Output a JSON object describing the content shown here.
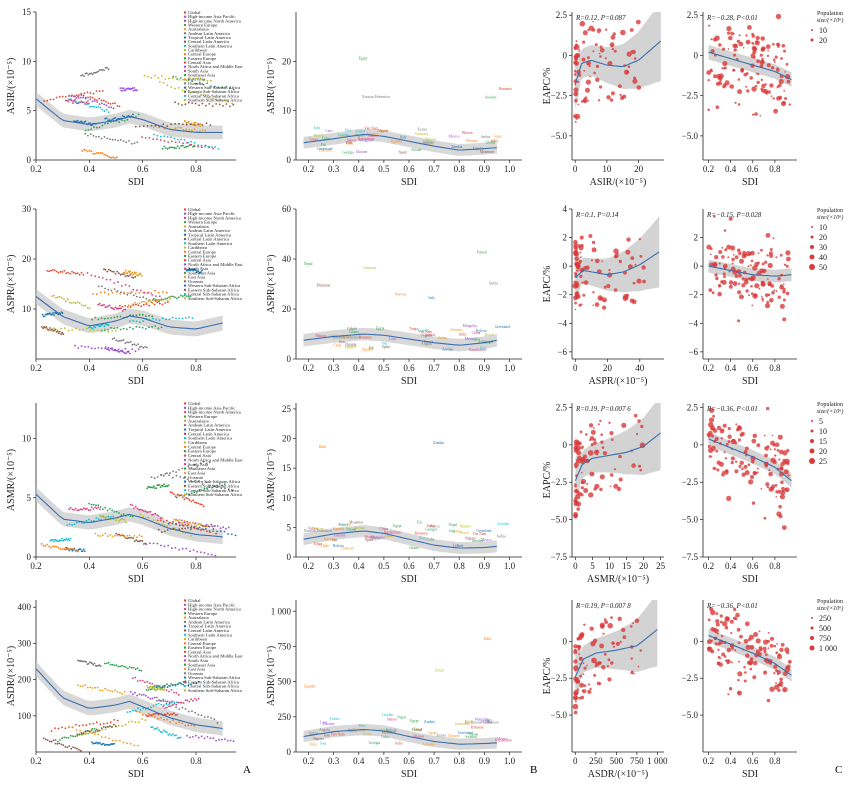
{
  "figure": {
    "panel_letters": [
      "A",
      "B",
      "C"
    ]
  },
  "colors": {
    "band": "#c8c8c8",
    "curve": "#3a6fb0",
    "point": "#d93a3a",
    "axis": "#222222",
    "palette": [
      "#e6452e",
      "#9a4fd1",
      "#d6417f",
      "#2ca05a",
      "#e8a020",
      "#7a7a7a",
      "#1f77b4",
      "#8c564b",
      "#17becf",
      "#bcbd22",
      "#ff7f0e",
      "#2f9e44"
    ]
  },
  "regions": [
    "Global",
    "High-income Asia Pacific",
    "High-income North America",
    "Western Europe",
    "Australasia",
    "Andean Latin America",
    "Tropical Latin America",
    "Central Latin America",
    "Southern Latin America",
    "Caribbean",
    "Central Europe",
    "Eastern Europe",
    "Central Asia",
    "North Africa and Middle East",
    "South Asia",
    "Southeast Asia",
    "East Asia",
    "Oceania",
    "Western Sub-Saharan Africa",
    "Eastern Sub-Saharan Africa",
    "Central Sub-Saharan Africa",
    "Southern Sub-Saharan Africa"
  ],
  "country_labels": [
    "Viet Nam",
    "Mongolia",
    "China",
    "Nepal",
    "Thailand",
    "Kenya",
    "Zambia",
    "Myanmar",
    "Peru",
    "Brazil",
    "Chile",
    "Egypt",
    "India",
    "Mexico",
    "Samoa",
    "Cuba",
    "Japan",
    "Russian Federation",
    "Greenland",
    "Nigeria",
    "Lesotho",
    "Malawi",
    "Uganda",
    "Ghana",
    "Tonga",
    "Laos",
    "Bhutan",
    "Fiji",
    "Sudan",
    "Angola",
    "Bolivia",
    "Iran",
    "Iraq",
    "Jordan",
    "Haiti",
    "Poland",
    "Romania",
    "Ukraine",
    "Kazakhstan",
    "Georgia",
    "Armenia",
    "Serbia",
    "Italy",
    "Spain",
    "France",
    "Germany",
    "Norway",
    "Sweden"
  ],
  "legend": {
    "title": "Population",
    "unit": "size/(×10⁶)"
  },
  "rows": [
    {
      "metric": "ASIR",
      "A": {
        "ylabel": "ASIR/(×10⁻⁵)",
        "xlabel": "SDI"
      },
      "B": {
        "ylabel": "ASIR/(×10⁻⁵)",
        "xlabel": "SDI"
      },
      "C1": {
        "stat": "R=0.12, P=0.087",
        "ylabel": "EAPC/%",
        "xlabel": "ASIR/(×10⁻⁵)"
      },
      "C2": {
        "stat": "R=−0.28, P<0.01",
        "xlabel": "SDI"
      },
      "legend_sizes": [
        "10",
        "20"
      ]
    },
    {
      "metric": "ASPR",
      "A": {
        "ylabel": "ASPR/(×10⁻⁵)",
        "xlabel": "SDI"
      },
      "B": {
        "ylabel": "ASPR/(×10⁻⁵)",
        "xlabel": "SDI"
      },
      "C1": {
        "stat": "R=0.1, P=0.14",
        "ylabel": "EAPC/%",
        "xlabel": "ASPR/(×10⁻⁵)"
      },
      "C2": {
        "stat": "R=−0.15, P=0.028",
        "xlabel": "SDI"
      },
      "legend_sizes": [
        "10",
        "20",
        "30",
        "40",
        "50"
      ]
    },
    {
      "metric": "ASMR",
      "A": {
        "ylabel": "ASMR/(×10⁻⁵)",
        "xlabel": "SDI"
      },
      "B": {
        "ylabel": "ASMR/(×10⁻⁵)",
        "xlabel": "SDI"
      },
      "C1": {
        "stat": "R=0.19, P=0.007 6",
        "ylabel": "EAPC/%",
        "xlabel": "ASMR/(×10⁻⁵)"
      },
      "C2": {
        "stat": "R=−0.36, P<0.01",
        "xlabel": "SDI"
      },
      "legend_sizes": [
        "5",
        "10",
        "15",
        "20",
        "25"
      ]
    },
    {
      "metric": "ASDR",
      "A": {
        "ylabel": "ASDR/(×10⁻⁵)",
        "xlabel": "SDI"
      },
      "B": {
        "ylabel": "ASDR/(×10⁻⁵)",
        "xlabel": "SDI"
      },
      "C1": {
        "stat": "R=0.19, P=0.007 8",
        "ylabel": "EAPC/%",
        "xlabel": "ASDR/(×10⁻⁵)"
      },
      "C2": {
        "stat": "R=−0.36, P<0.01",
        "xlabel": "SDI"
      },
      "legend_sizes": [
        "250",
        "500",
        "750",
        "1 000"
      ]
    }
  ],
  "chart_data": [
    {
      "type": "scatter",
      "panel": "A",
      "metric": "ASIR",
      "title": "",
      "xlabel": "SDI",
      "ylabel": "ASIR/(×10⁻⁵)",
      "xlim": [
        0.2,
        0.95
      ],
      "ylim": [
        0,
        15
      ],
      "x_ticks": [
        "0.2",
        "0.4",
        "0.6",
        "0.8"
      ],
      "y_ticks": [
        "0",
        "5",
        "10",
        "15"
      ],
      "smooth_x": [
        0.2,
        0.3,
        0.4,
        0.5,
        0.55,
        0.6,
        0.7,
        0.8,
        0.9
      ],
      "smooth_y": [
        6.2,
        4,
        3.6,
        4,
        4.4,
        4.1,
        3.1,
        2.8,
        2.8
      ],
      "band_halfwidth": 0.7
    },
    {
      "type": "scatter",
      "panel": "B",
      "metric": "ASIR",
      "title": "",
      "xlabel": "SDI",
      "ylabel": "ASIR/(×10⁻⁵)",
      "xlim": [
        0.15,
        1.05
      ],
      "ylim": [
        0,
        30
      ],
      "x_ticks": [
        "0.2",
        "0.3",
        "0.4",
        "0.5",
        "0.6",
        "0.7",
        "0.8",
        "0.9",
        "1.0"
      ],
      "y_ticks": [
        "0",
        "10",
        "20"
      ],
      "smooth_x": [
        0.18,
        0.3,
        0.42,
        0.5,
        0.6,
        0.7,
        0.8,
        0.9,
        0.95
      ],
      "smooth_y": [
        3.5,
        4.3,
        5.2,
        4.8,
        3.8,
        2.8,
        2,
        2.3,
        2.5
      ],
      "band_halfwidth": 1.2
    },
    {
      "type": "scatter",
      "panel": "C1",
      "metric": "ASIR",
      "title": "",
      "xlabel": "ASIR/(×10⁻⁵)",
      "ylabel": "EAPC/%",
      "xlim": [
        -1,
        28
      ],
      "ylim": [
        -6.5,
        2.7
      ],
      "x_ticks": [
        "0",
        "10",
        "20"
      ],
      "y_ticks": [
        "2.5",
        "0",
        "−2.5",
        "−5.0"
      ],
      "smooth_x": [
        0,
        2,
        5,
        10,
        15,
        20,
        27
      ],
      "smooth_y": [
        -1.8,
        -0.5,
        -0.3,
        -0.6,
        -0.7,
        -0.3,
        0.9
      ]
    },
    {
      "type": "scatter",
      "panel": "C2",
      "metric": "ASIR",
      "title": "",
      "xlabel": "SDI",
      "ylabel": "",
      "xlim": [
        0.15,
        1.0
      ],
      "ylim": [
        -6.5,
        2.7
      ],
      "x_ticks": [
        "0.2",
        "0.4",
        "0.6",
        "0.8"
      ],
      "y_ticks": [
        "2.5",
        "0",
        "−2.5",
        "−5.0"
      ],
      "smooth_x": [
        0.2,
        0.4,
        0.6,
        0.8,
        0.95
      ],
      "smooth_y": [
        0.2,
        -0.2,
        -0.6,
        -1,
        -1.5
      ]
    },
    {
      "type": "scatter",
      "panel": "A",
      "metric": "ASPR",
      "title": "",
      "xlabel": "SDI",
      "ylabel": "ASPR/(×10⁻⁵)",
      "xlim": [
        0.2,
        0.95
      ],
      "ylim": [
        0,
        30
      ],
      "x_ticks": [
        "0.2",
        "0.4",
        "0.6",
        "0.8"
      ],
      "y_ticks": [
        "10",
        "20",
        "30"
      ],
      "smooth_x": [
        0.2,
        0.3,
        0.4,
        0.5,
        0.55,
        0.6,
        0.7,
        0.8,
        0.9
      ],
      "smooth_y": [
        12.5,
        8.5,
        6.6,
        7.6,
        8.6,
        8.2,
        6.4,
        6,
        7.2
      ],
      "band_halfwidth": 1.5
    },
    {
      "type": "scatter",
      "panel": "B",
      "metric": "ASPR",
      "title": "",
      "xlabel": "SDI",
      "ylabel": "ASPR/(×10⁻⁵)",
      "xlim": [
        0.15,
        1.05
      ],
      "ylim": [
        0,
        60
      ],
      "x_ticks": [
        "0.2",
        "0.3",
        "0.4",
        "0.5",
        "0.6",
        "0.7",
        "0.8",
        "0.9",
        "1.0"
      ],
      "y_ticks": [
        "0",
        "20",
        "40",
        "60"
      ],
      "smooth_x": [
        0.18,
        0.3,
        0.42,
        0.5,
        0.6,
        0.7,
        0.8,
        0.9,
        0.95
      ],
      "smooth_y": [
        7.5,
        9,
        10,
        9.5,
        8,
        6.5,
        5.5,
        6.5,
        7.5
      ],
      "band_halfwidth": 2.5
    },
    {
      "type": "scatter",
      "panel": "C1",
      "metric": "ASPR",
      "title": "",
      "xlabel": "ASPR/(×10⁻⁵)",
      "ylabel": "EAPC/%",
      "xlim": [
        -2,
        55
      ],
      "ylim": [
        -6.5,
        4
      ],
      "x_ticks": [
        "0",
        "20",
        "40"
      ],
      "y_ticks": [
        "4",
        "2",
        "0",
        "−2",
        "−4",
        "−6"
      ],
      "smooth_x": [
        0,
        5,
        10,
        20,
        30,
        40,
        52
      ],
      "smooth_y": [
        -0.8,
        -0.3,
        -0.4,
        -0.6,
        -0.4,
        0.1,
        1.0
      ]
    },
    {
      "type": "scatter",
      "panel": "C2",
      "metric": "ASPR",
      "title": "",
      "xlabel": "SDI",
      "ylabel": "",
      "xlim": [
        0.15,
        1.0
      ],
      "ylim": [
        -6.5,
        4
      ],
      "x_ticks": [
        "0.2",
        "0.4",
        "0.6",
        "0.8"
      ],
      "y_ticks": [
        "2",
        "0",
        "−2",
        "−4",
        "−6"
      ],
      "smooth_x": [
        0.2,
        0.4,
        0.6,
        0.8,
        0.95
      ],
      "smooth_y": [
        0,
        -0.3,
        -0.6,
        -0.7,
        -0.6
      ]
    },
    {
      "type": "scatter",
      "panel": "A",
      "metric": "ASMR",
      "title": "",
      "xlabel": "SDI",
      "ylabel": "ASMR/(×10⁻⁵)",
      "xlim": [
        0.2,
        0.95
      ],
      "ylim": [
        0,
        13
      ],
      "x_ticks": [
        "0.2",
        "0.4",
        "0.6",
        "0.8"
      ],
      "y_ticks": [
        "0",
        "5",
        "10"
      ],
      "smooth_x": [
        0.2,
        0.3,
        0.4,
        0.5,
        0.55,
        0.6,
        0.7,
        0.8,
        0.9
      ],
      "smooth_y": [
        5.3,
        3.2,
        2.9,
        3.3,
        3.6,
        3.3,
        2.4,
        1.9,
        1.7
      ],
      "band_halfwidth": 0.6
    },
    {
      "type": "scatter",
      "panel": "B",
      "metric": "ASMR",
      "title": "",
      "xlabel": "SDI",
      "ylabel": "ASMR/(×10⁻⁵)",
      "xlim": [
        0.15,
        1.05
      ],
      "ylim": [
        0,
        26
      ],
      "x_ticks": [
        "0.2",
        "0.3",
        "0.4",
        "0.5",
        "0.6",
        "0.7",
        "0.8",
        "0.9",
        "1.0"
      ],
      "y_ticks": [
        "0",
        "5",
        "10",
        "15",
        "20",
        "25"
      ],
      "smooth_x": [
        0.18,
        0.3,
        0.42,
        0.5,
        0.6,
        0.7,
        0.8,
        0.9,
        0.95
      ],
      "smooth_y": [
        3,
        3.9,
        4.4,
        4,
        3,
        2,
        1.5,
        1.6,
        1.8
      ],
      "band_halfwidth": 1
    },
    {
      "type": "scatter",
      "panel": "C1",
      "metric": "ASMR",
      "title": "",
      "xlabel": "ASMR/(×10⁻⁵)",
      "ylabel": "EAPC/%",
      "xlim": [
        -1,
        26
      ],
      "ylim": [
        -7.5,
        2.8
      ],
      "x_ticks": [
        "0",
        "5",
        "10",
        "15",
        "20",
        "25"
      ],
      "y_ticks": [
        "2.5",
        "0",
        "−2.5",
        "−5.0",
        "−7.5"
      ],
      "smooth_x": [
        0,
        2,
        5,
        10,
        15,
        20,
        25
      ],
      "smooth_y": [
        -2.4,
        -1.3,
        -0.9,
        -0.7,
        -0.5,
        -0.1,
        0.8
      ]
    },
    {
      "type": "scatter",
      "panel": "C2",
      "metric": "ASMR",
      "title": "",
      "xlabel": "SDI",
      "ylabel": "",
      "xlim": [
        0.15,
        1.0
      ],
      "ylim": [
        -7.5,
        2.8
      ],
      "x_ticks": [
        "0.2",
        "0.4",
        "0.6",
        "0.8"
      ],
      "y_ticks": [
        "2.5",
        "0",
        "−2.5",
        "−5.0",
        "−7.5"
      ],
      "smooth_x": [
        0.2,
        0.4,
        0.6,
        0.8,
        0.95
      ],
      "smooth_y": [
        0.4,
        -0.2,
        -0.8,
        -1.5,
        -2.4
      ]
    },
    {
      "type": "scatter",
      "panel": "A",
      "metric": "ASDR",
      "title": "",
      "xlabel": "SDI",
      "ylabel": "ASDR/(×10⁻⁵)",
      "xlim": [
        0.2,
        0.95
      ],
      "ylim": [
        0,
        420
      ],
      "x_ticks": [
        "0.2",
        "0.4",
        "0.6",
        "0.8"
      ],
      "y_ticks": [
        "100",
        "200",
        "300",
        "400"
      ],
      "smooth_x": [
        0.2,
        0.3,
        0.4,
        0.5,
        0.55,
        0.6,
        0.7,
        0.8,
        0.9
      ],
      "smooth_y": [
        230,
        150,
        120,
        130,
        140,
        125,
        95,
        75,
        65
      ],
      "band_halfwidth": 20
    },
    {
      "type": "scatter",
      "panel": "B",
      "metric": "ASDR",
      "title": "",
      "xlabel": "SDI",
      "ylabel": "ASDR/(×10⁻⁵)",
      "xlim": [
        0.15,
        1.05
      ],
      "ylim": [
        0,
        1080
      ],
      "x_ticks": [
        "0.2",
        "0.3",
        "0.4",
        "0.5",
        "0.6",
        "0.7",
        "0.8",
        "0.9",
        "1.0"
      ],
      "y_ticks": [
        "0",
        "250",
        "500",
        "750",
        "1 000"
      ],
      "smooth_x": [
        0.18,
        0.3,
        0.42,
        0.5,
        0.6,
        0.7,
        0.8,
        0.9,
        0.95
      ],
      "smooth_y": [
        110,
        145,
        160,
        150,
        110,
        75,
        55,
        60,
        65
      ],
      "band_halfwidth": 40
    },
    {
      "type": "scatter",
      "panel": "C1",
      "metric": "ASDR",
      "title": "",
      "xlabel": "ASDR/(×10⁻⁵)",
      "ylabel": "EAPC/%",
      "xlim": [
        -40,
        1080
      ],
      "ylim": [
        -7.5,
        2.8
      ],
      "x_ticks": [
        "0",
        "250",
        "500",
        "750",
        "1 000"
      ],
      "y_ticks": [
        "0",
        "−2.5",
        "−5.0"
      ],
      "smooth_x": [
        0,
        100,
        250,
        500,
        750,
        1000
      ],
      "smooth_y": [
        -2.4,
        -1.2,
        -0.8,
        -0.6,
        -0.3,
        0.8
      ]
    },
    {
      "type": "scatter",
      "panel": "C2",
      "metric": "ASDR",
      "title": "",
      "xlabel": "SDI",
      "ylabel": "",
      "xlim": [
        0.15,
        1.0
      ],
      "ylim": [
        -7.5,
        2.8
      ],
      "x_ticks": [
        "0.2",
        "0.4",
        "0.6",
        "0.8"
      ],
      "y_ticks": [
        "0",
        "−2.5",
        "−5.0"
      ],
      "smooth_x": [
        0.2,
        0.4,
        0.6,
        0.8,
        0.95
      ],
      "smooth_y": [
        0.4,
        -0.2,
        -0.8,
        -1.5,
        -2.3
      ]
    }
  ]
}
